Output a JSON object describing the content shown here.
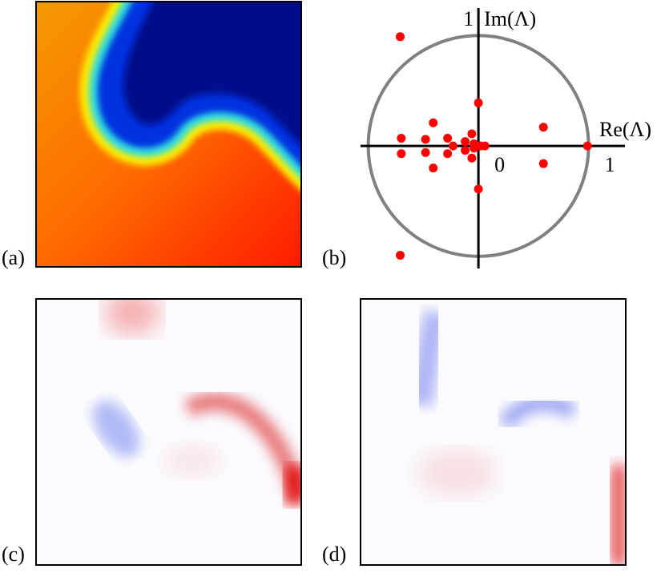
{
  "panels": [
    {
      "label": "(a)"
    },
    {
      "label": "(b)"
    },
    {
      "label": "(c)"
    },
    {
      "label": "(d)"
    }
  ],
  "chart_data": {
    "type": "scatter",
    "x_label": "Re(Λ)",
    "y_label": "Im(Λ)",
    "color": "#ff0000",
    "x": [
      -0.71,
      -0.71,
      0,
      0,
      0.59,
      0.59,
      0.99,
      -0.41,
      -0.41,
      -0.7,
      -0.7,
      -0.48,
      -0.48,
      -0.28,
      -0.28,
      -0.23,
      -0.12,
      -0.12,
      -0.06,
      -0.06,
      -0.04,
      -0.04,
      0.02,
      0.06
    ],
    "y": [
      0.99,
      -0.99,
      0.39,
      -0.39,
      0.17,
      -0.16,
      0,
      0.21,
      -0.2,
      0.07,
      -0.07,
      0.06,
      -0.06,
      0.07,
      -0.07,
      0,
      0.04,
      -0.04,
      0.11,
      -0.11,
      0.02,
      -0.02,
      0,
      0
    ],
    "xlim": [
      -1.07,
      1.33
    ],
    "ylim": [
      -1.11,
      1.25
    ],
    "xticks": [
      0,
      1
    ],
    "yticks": [
      1
    ]
  }
}
